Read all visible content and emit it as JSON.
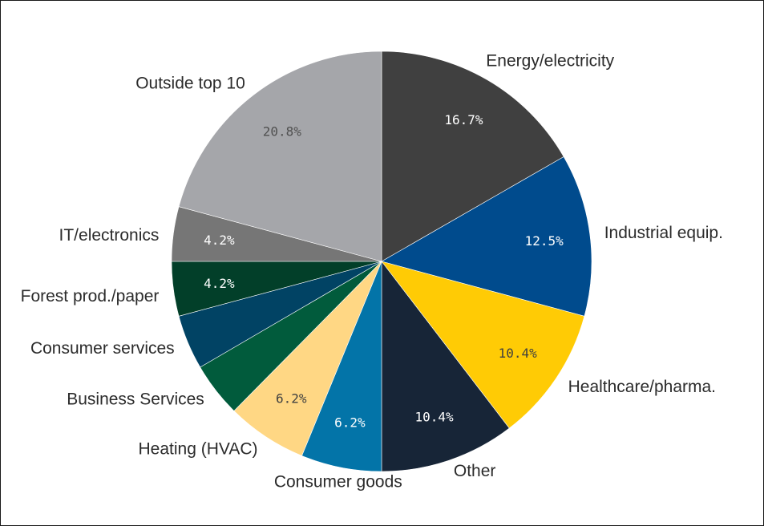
{
  "chart_data": {
    "type": "pie",
    "title": "",
    "slices": [
      {
        "label": "Energy/electricity",
        "value": 16.7,
        "value_label": "16.7%",
        "color": "#404040",
        "text_color": "#ffffff"
      },
      {
        "label": "Industrial equip.",
        "value": 12.5,
        "value_label": "12.5%",
        "color": "#004b8d",
        "text_color": "#ffffff"
      },
      {
        "label": "Healthcare/pharma.",
        "value": 10.4,
        "value_label": "10.4%",
        "color": "#ffcb05",
        "text_color": "#404040"
      },
      {
        "label": "Other",
        "value": 10.4,
        "value_label": "10.4%",
        "color": "#172537",
        "text_color": "#ffffff"
      },
      {
        "label": "Consumer goods",
        "value": 6.2,
        "value_label": "6.2%",
        "color": "#0374a8",
        "text_color": "#ffffff"
      },
      {
        "label": "Heating (HVAC)",
        "value": 6.2,
        "value_label": "6.2%",
        "color": "#ffd784",
        "text_color": "#404040"
      },
      {
        "label": "Business Services",
        "value": 4.2,
        "value_label": "",
        "color": "#015b3c",
        "text_color": "#ffffff"
      },
      {
        "label": "Consumer services",
        "value": 4.2,
        "value_label": "",
        "color": "#014364",
        "text_color": "#ffffff"
      },
      {
        "label": "Forest prod./paper",
        "value": 4.2,
        "value_label": "4.2%",
        "color": "#023f29",
        "text_color": "#ffffff"
      },
      {
        "label": "IT/electronics",
        "value": 4.2,
        "value_label": "4.2%",
        "color": "#767676",
        "text_color": "#ffffff"
      },
      {
        "label": "Outside top 10",
        "value": 20.8,
        "value_label": "20.8%",
        "color": "#a5a6aa",
        "text_color": "#505050"
      }
    ],
    "legend": "none"
  }
}
